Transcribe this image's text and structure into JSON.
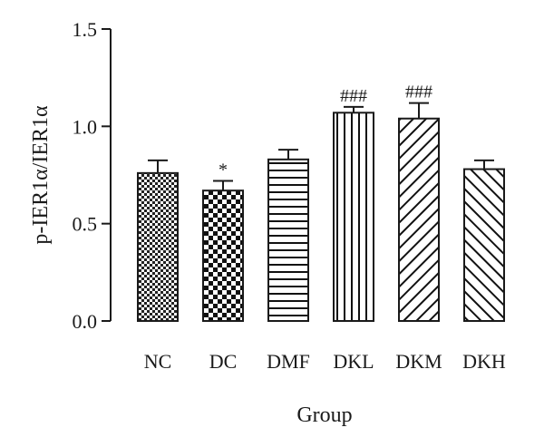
{
  "chart_data": {
    "type": "bar",
    "title": "",
    "xlabel": "Group",
    "ylabel": "p-IER1α/IER1α",
    "ylim": [
      0,
      1.5
    ],
    "yticks": [
      "0.0",
      "0.5",
      "1.0",
      "1.5"
    ],
    "ytick_values": [
      0,
      0.5,
      1.0,
      1.5
    ],
    "grid": false,
    "categories": [
      "NC",
      "DC",
      "DMF",
      "DKL",
      "DKM",
      "DKH"
    ],
    "values": [
      0.76,
      0.67,
      0.83,
      1.07,
      1.04,
      0.78
    ],
    "errors": [
      0.065,
      0.05,
      0.05,
      0.03,
      0.08,
      0.045
    ],
    "annotations": [
      "",
      "*",
      "",
      "###",
      "###",
      ""
    ],
    "patterns": [
      "dense-check",
      "checkerboard",
      "horizontal-lines",
      "vertical-lines",
      "diagonal-up",
      "diagonal-down"
    ]
  }
}
